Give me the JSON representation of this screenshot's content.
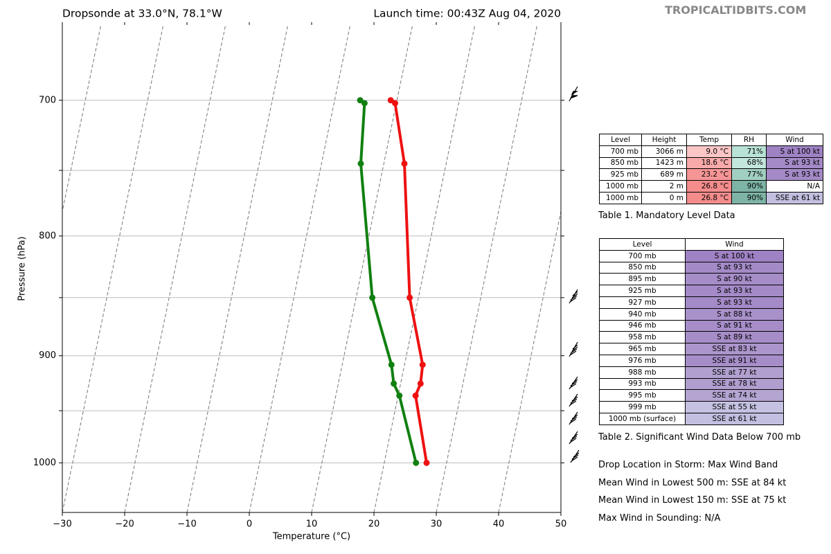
{
  "chart_data": {
    "type": "skewt",
    "title_left": "Dropsonde at 33.0°N, 78.1°W",
    "title_right": "Launch time: 00:43Z Aug 04, 2020",
    "x_label": "Temperature (°C)",
    "y_label": "Pressure (hPa)",
    "xlim": [
      -30,
      50
    ],
    "xticks": [
      {
        "value": -30,
        "label": "−30"
      },
      {
        "value": -20,
        "label": "−20"
      },
      {
        "value": -10,
        "label": "−10"
      },
      0,
      10,
      20,
      30,
      40,
      50
    ],
    "ylim": [
      1050,
      650
    ],
    "log_y": true,
    "yticks": [
      700,
      800,
      900,
      1000
    ],
    "yminor": [
      750,
      850,
      950
    ],
    "grid": true,
    "y": [
      700,
      702,
      745,
      850,
      908,
      925,
      936,
      1000
    ],
    "series": [
      {
        "color": "#ee1111",
        "values": [
          9.0,
          9.8,
          13.3,
          18.6,
          22.9,
          23.2,
          22.8,
          26.8
        ]
      },
      {
        "color": "#118011",
        "values": [
          4.1,
          4.9,
          6.3,
          12.6,
          17.9,
          18.9,
          20.2,
          25.1
        ]
      }
    ]
  },
  "watermark": "TROPICALTIDBITS.COM",
  "table1": {
    "caption": "Table 1. Mandatory Level Data",
    "header": [
      "Level",
      "Height",
      "Temp",
      "RH",
      "Wind"
    ],
    "rows": [
      [
        "700 mb",
        "3066 m",
        "9.0 °C",
        "71%",
        "S at 100 kt"
      ],
      [
        "850 mb",
        "1423 m",
        "18.6 °C",
        "68%",
        "S at 93 kt"
      ],
      [
        "925 mb",
        "689 m",
        "23.2 °C",
        "77%",
        "S at 93 kt"
      ],
      [
        "1000 mb",
        "2 m",
        "26.8 °C",
        "90%",
        "N/A"
      ],
      [
        "1000 mb",
        "0 m",
        "26.8 °C",
        "90%",
        "SSE at 61 kt"
      ]
    ],
    "colors": [
      [
        null,
        null,
        "#fcc6c6",
        "#b8e2d5",
        "#9f82c4"
      ],
      [
        null,
        null,
        "#f8aaaa",
        "#c3e7dc",
        "#a48ac7"
      ],
      [
        null,
        null,
        "#f59595",
        "#a1cfc1",
        "#a48ac7"
      ],
      [
        null,
        null,
        "#f48c8c",
        "#7db4a6",
        null
      ],
      [
        null,
        null,
        "#f48c8c",
        "#7db4a6",
        "#c2bfe0"
      ]
    ]
  },
  "table2": {
    "caption": "Table 2. Significant Wind Data Below 700 mb",
    "header": [
      "Level",
      "Wind"
    ],
    "rows": [
      [
        "700 mb",
        "S at 100 kt"
      ],
      [
        "850 mb",
        "S at 93 kt"
      ],
      [
        "895 mb",
        "S at 90 kt"
      ],
      [
        "925 mb",
        "S at 93 kt"
      ],
      [
        "927 mb",
        "S at 93 kt"
      ],
      [
        "940 mb",
        "S at 88 kt"
      ],
      [
        "946 mb",
        "S at 91 kt"
      ],
      [
        "958 mb",
        "S at 89 kt"
      ],
      [
        "965 mb",
        "SSE at 83 kt"
      ],
      [
        "976 mb",
        "SSE at 91 kt"
      ],
      [
        "988 mb",
        "SSE at 77 kt"
      ],
      [
        "993 mb",
        "SSE at 78 kt"
      ],
      [
        "995 mb",
        "SSE at 74 kt"
      ],
      [
        "999 mb",
        "SSE at 55 kt"
      ],
      [
        "1000 mb (surface)",
        "SSE at 61 kt"
      ]
    ],
    "colors": [
      "#9f82c4",
      "#a48ac7",
      "#a68dc8",
      "#a48ac7",
      "#a48ac7",
      "#a890c9",
      "#a68dc8",
      "#a68dc8",
      "#ab95cb",
      "#a68dc8",
      "#b1a0cf",
      "#b09ecf",
      "#b3a4d1",
      "#c4c1e1",
      "#c2bfe0"
    ]
  },
  "notes": [
    "Drop Location in Storm: Max Wind Band",
    "Mean Wind in Lowest 500 m:  SSE at 84 kt",
    "Mean Wind in Lowest 150 m:  SSE at 75 kt",
    "Max Wind in Sounding:  N/A"
  ]
}
